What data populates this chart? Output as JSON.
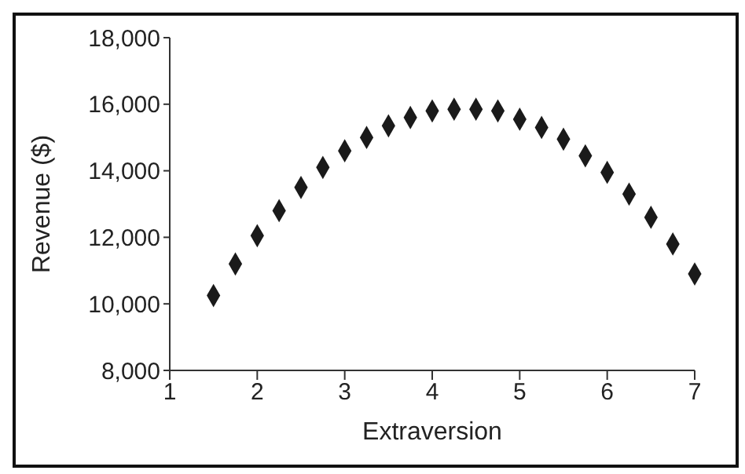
{
  "chart_data": {
    "type": "scatter",
    "xlabel": "Extraversion",
    "ylabel": "Revenue ($)",
    "x": [
      1.5,
      1.75,
      2,
      2.25,
      2.5,
      2.75,
      3,
      3.25,
      3.5,
      3.75,
      4,
      4.25,
      4.5,
      4.75,
      5,
      5.25,
      5.5,
      5.75,
      6,
      6.25,
      6.5,
      6.75,
      7
    ],
    "series": [
      {
        "color": "#1a1a1a",
        "values": [
          10250,
          11200,
          12050,
          12800,
          13500,
          14100,
          14600,
          15000,
          15350,
          15600,
          15800,
          15850,
          15850,
          15800,
          15550,
          15300,
          14950,
          14450,
          13950,
          13300,
          12600,
          11800,
          10900
        ]
      }
    ],
    "xlim": [
      1,
      7
    ],
    "xticks": [
      1,
      2,
      3,
      4,
      5,
      6,
      7
    ],
    "ylim": [
      8000,
      18000
    ],
    "yticks": [
      {
        "value": 8000,
        "label": "8,000"
      },
      {
        "value": 10000,
        "label": "10,000"
      },
      {
        "value": 12000,
        "label": "12,000"
      },
      {
        "value": 14000,
        "label": "14,000"
      },
      {
        "value": 16000,
        "label": "16,000"
      },
      {
        "value": 18000,
        "label": "18,000"
      }
    ],
    "marker": "diamond",
    "grid": false,
    "legend": false
  }
}
